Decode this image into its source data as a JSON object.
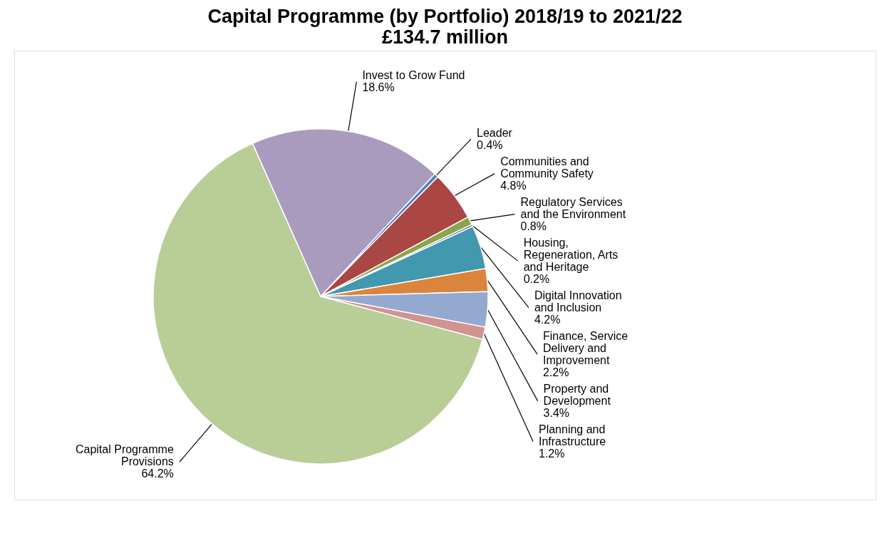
{
  "chart_data": {
    "type": "pie",
    "title": "Capital Programme (by Portfolio) 2018/19 to 2021/22",
    "subtitle": "£134.7 million",
    "categories": [
      "Leader",
      "Communities and Community Safety",
      "Regulatory Services and the Environment",
      "Housing, Regeneration, Arts and Heritage",
      "Digital Innovation and Inclusion",
      "Finance, Service Delivery and Improvement",
      "Property and Development",
      "Planning and Infrastructure",
      "Capital Programme Provisions",
      "Invest to Grow Fund"
    ],
    "values": [
      0.4,
      4.8,
      0.8,
      0.2,
      4.2,
      2.2,
      3.4,
      1.2,
      64.2,
      18.6
    ],
    "value_labels": [
      "0.4%",
      "4.8%",
      "0.8%",
      "0.2%",
      "4.2%",
      "2.2%",
      "3.4%",
      "1.2%",
      "64.2%",
      "18.6%"
    ],
    "colors": [
      "#4f81bd",
      "#aa4643",
      "#89a54e",
      "#71588f",
      "#4198af",
      "#db843d",
      "#93a9cf",
      "#d19392",
      "#b9cd96",
      "#a99bbd"
    ],
    "legend": false
  }
}
